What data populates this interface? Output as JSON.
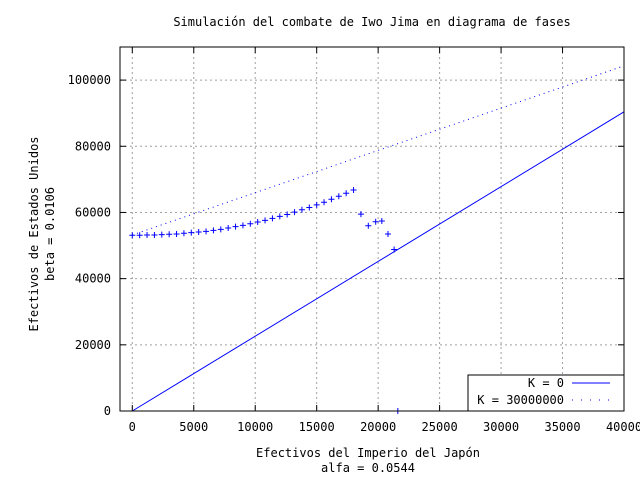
{
  "chart_data": {
    "type": "scatter",
    "title": "Simulación del combate de Iwo Jima en diagrama de fases",
    "xlabel": "Efectivos del Imperio del Japón",
    "xlabel2": "alfa = 0.0544",
    "ylabel": "Efectivos de Estados Unidos",
    "ylabel2": "beta = 0.0106",
    "xlim": [
      -1000,
      40000
    ],
    "ylim": [
      0,
      110000
    ],
    "xticks": [
      0,
      5000,
      10000,
      15000,
      20000,
      25000,
      30000,
      35000,
      40000
    ],
    "yticks": [
      0,
      20000,
      40000,
      60000,
      80000,
      100000
    ],
    "grid": true,
    "legend_position": "bottom-right",
    "colors": {
      "series": "#0000ff",
      "grid": "#a0a0a0",
      "axes": "#000000"
    },
    "series": [
      {
        "name": "K = 0",
        "style": "line",
        "x": [
          0,
          40000
        ],
        "y": [
          0,
          90400
        ]
      },
      {
        "name": "K = 30000000",
        "style": "dots",
        "x": [
          0,
          40000
        ],
        "y": [
          53200,
          104300
        ]
      },
      {
        "name": "",
        "style": "points",
        "x": [
          0,
          600,
          1200,
          1800,
          2400,
          3000,
          3600,
          4200,
          4800,
          5400,
          6000,
          6600,
          7200,
          7800,
          8400,
          9000,
          9600,
          10200,
          10800,
          11400,
          12000,
          12600,
          13200,
          13800,
          14400,
          15000,
          15600,
          16200,
          16800,
          17400,
          18000,
          18600,
          19200,
          19800,
          20300,
          20800,
          21300,
          21600
        ],
        "y": [
          53100,
          53100,
          53200,
          53200,
          53300,
          53400,
          53500,
          53700,
          53900,
          54100,
          54300,
          54600,
          54900,
          55300,
          55700,
          56100,
          56600,
          57100,
          57600,
          58200,
          58800,
          59400,
          60100,
          60800,
          61500,
          62300,
          63100,
          64000,
          64900,
          65800,
          66800,
          59500,
          56000,
          57200,
          57400,
          53500,
          48800,
          0
        ]
      }
    ]
  }
}
